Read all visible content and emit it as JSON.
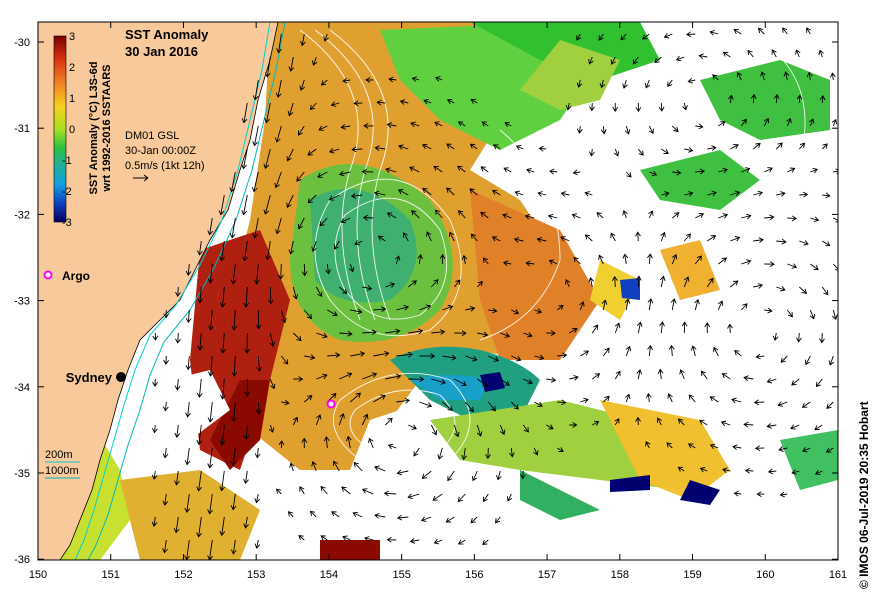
{
  "title": {
    "line1": "SST Anomaly",
    "line2": "30 Jan 2016"
  },
  "colorbar": {
    "label_line1": "SST Anomaly (°C) L3S-6d",
    "label_line2": "wrt 1992-2016 SSTAARS",
    "ticks": [
      "3",
      "2",
      "1",
      "0",
      "-1",
      "-2",
      "-3"
    ]
  },
  "current_info": {
    "line1": "DM01 GSL",
    "line2": "30-Jan 00:00Z",
    "line3": "0.5m/s (1kt 12h)"
  },
  "markers": {
    "argo_legend": "Argo",
    "city": "Sydney"
  },
  "isobath_legend": {
    "shallow": "200m",
    "deep": "1000m"
  },
  "axes": {
    "x_ticks": [
      "150",
      "151",
      "152",
      "153",
      "154",
      "155",
      "156",
      "157",
      "158",
      "159",
      "160",
      "161"
    ],
    "y_ticks": [
      "-30",
      "-31",
      "-32",
      "-33",
      "-34",
      "-35",
      "-36"
    ]
  },
  "credit": "© IMOS 06-Jul-2019 20:35 Hobart",
  "colors": {
    "land": "#f8c99a",
    "argo": "#ff00ff",
    "isobath": "#00d0d0",
    "contour": "#ffffff",
    "arrow": "#000000"
  }
}
